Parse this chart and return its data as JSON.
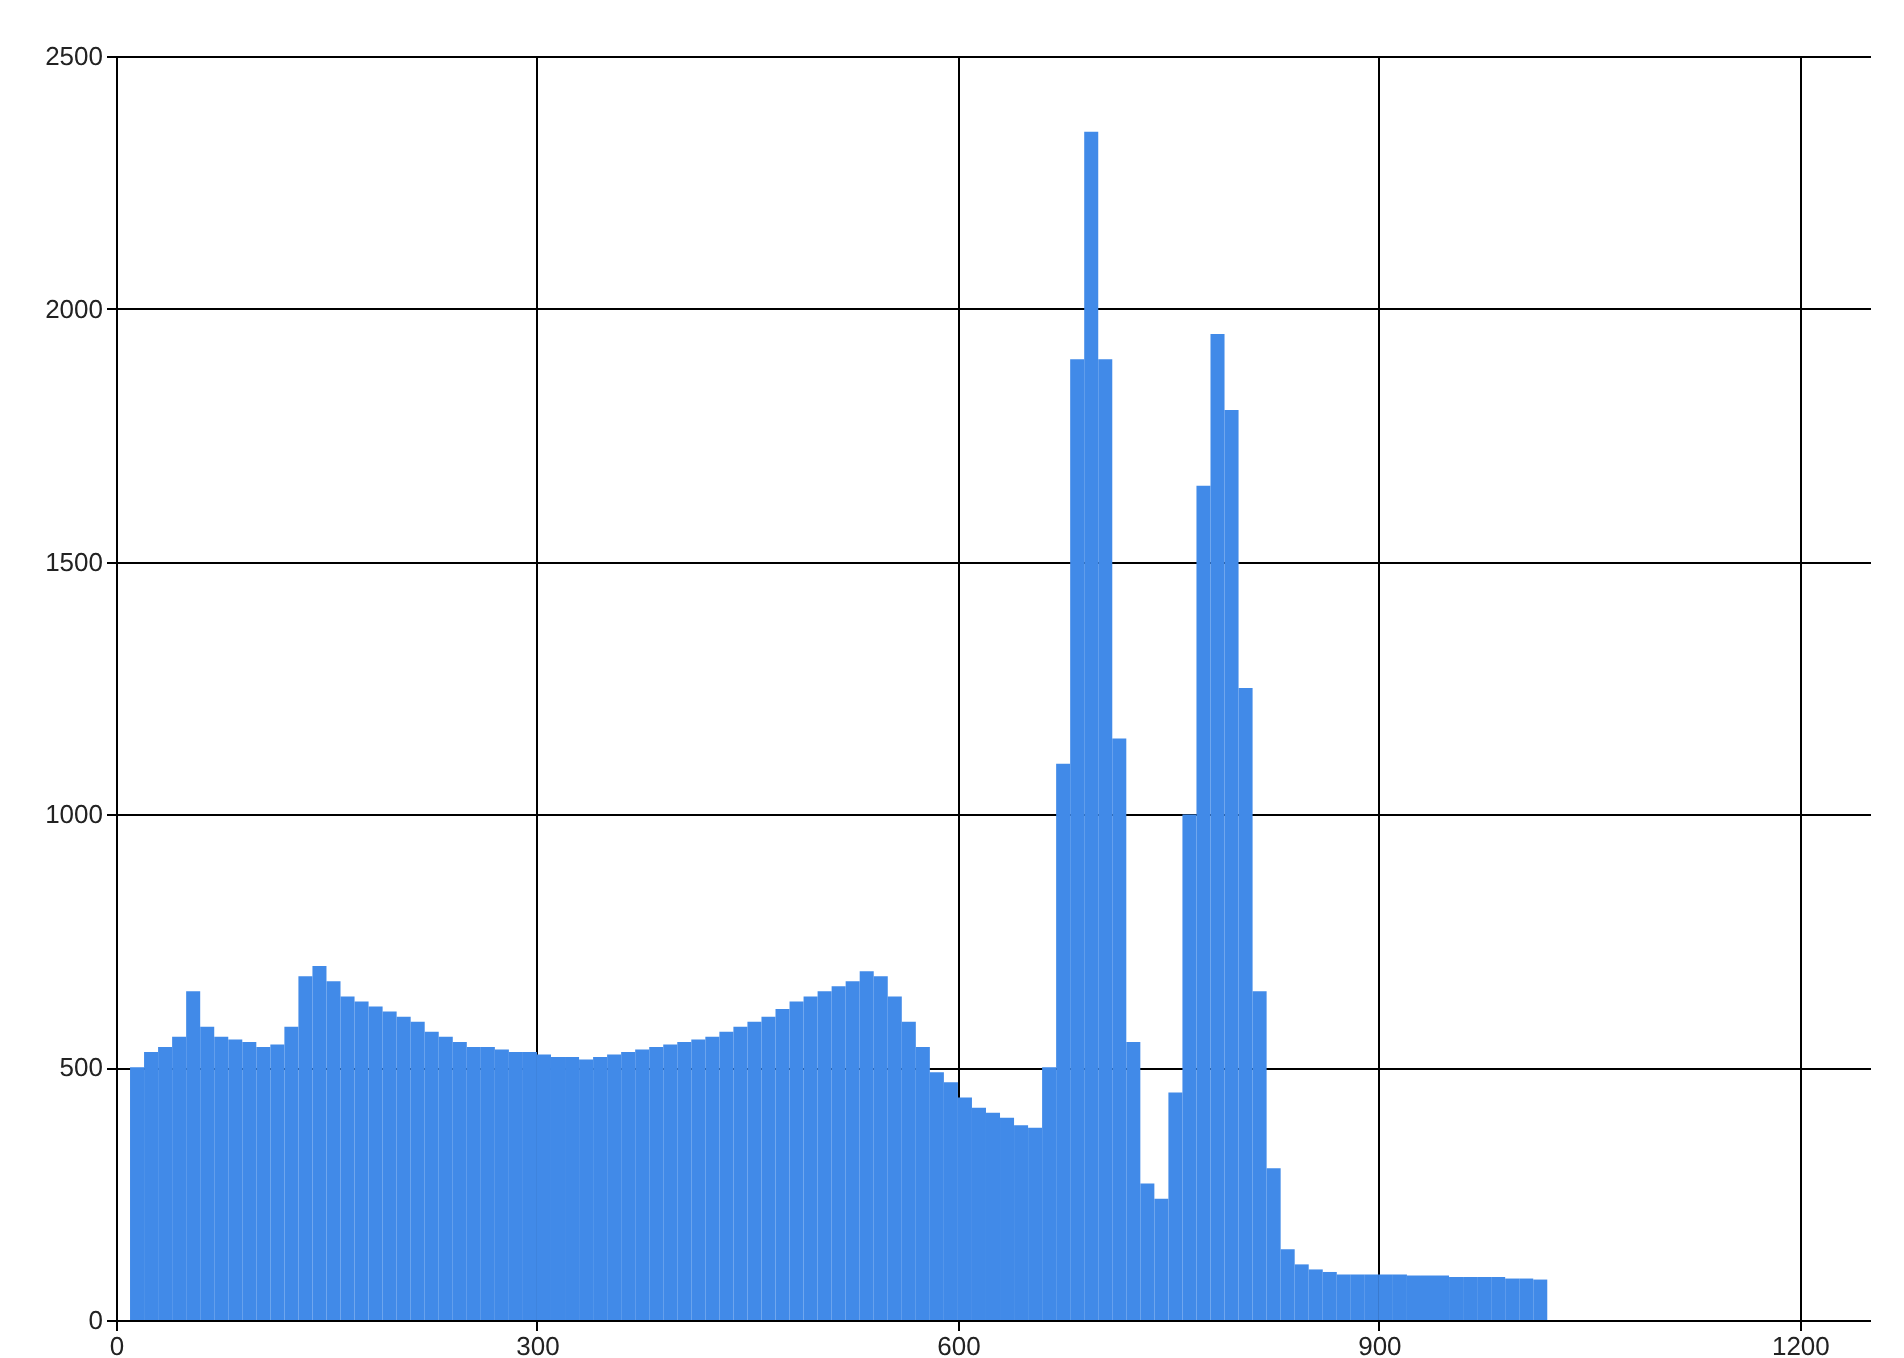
{
  "chart_data": {
    "type": "histogram",
    "bins": [
      10,
      20,
      30,
      40,
      50,
      60,
      70,
      80,
      90,
      100,
      110,
      120,
      130,
      140,
      150,
      160,
      170,
      180,
      190,
      200,
      210,
      220,
      230,
      240,
      250,
      260,
      270,
      280,
      290,
      300,
      310,
      320,
      330,
      340,
      350,
      360,
      370,
      380,
      390,
      400,
      410,
      420,
      430,
      440,
      450,
      460,
      470,
      480,
      490,
      500,
      510,
      520,
      530,
      540,
      550,
      560,
      570,
      580,
      590,
      600,
      610,
      620,
      630,
      640,
      650,
      660,
      670,
      680,
      690,
      700,
      710,
      720,
      730,
      740,
      750,
      760,
      770,
      780,
      790,
      800,
      810,
      820,
      830,
      840,
      850,
      860,
      870,
      880,
      890,
      900,
      910,
      920,
      930,
      940,
      950,
      960,
      970,
      980,
      990,
      1000,
      1010,
      1020
    ],
    "values": [
      500,
      530,
      540,
      560,
      650,
      580,
      560,
      555,
      550,
      540,
      545,
      580,
      680,
      700,
      670,
      640,
      630,
      620,
      610,
      600,
      590,
      570,
      560,
      550,
      540,
      540,
      535,
      530,
      530,
      525,
      520,
      520,
      515,
      520,
      525,
      530,
      535,
      540,
      545,
      550,
      555,
      560,
      570,
      580,
      590,
      600,
      615,
      630,
      640,
      650,
      660,
      670,
      690,
      680,
      640,
      590,
      540,
      490,
      470,
      440,
      420,
      410,
      400,
      385,
      380,
      500,
      1100,
      1900,
      2350,
      1900,
      1150,
      550,
      270,
      240,
      450,
      1000,
      1650,
      1950,
      1800,
      1250,
      650,
      300,
      140,
      110,
      100,
      95,
      90,
      90,
      90,
      90,
      90,
      88,
      88,
      88,
      85,
      85,
      85,
      85,
      82,
      82,
      80
    ],
    "color": "#418ae8",
    "xlim": [
      0,
      1250
    ],
    "xticks": [
      0,
      300,
      600,
      900,
      1200
    ],
    "ylim": [
      0,
      2500
    ],
    "yticks": [
      0,
      500,
      1000,
      1500,
      2000,
      2500
    ],
    "grid": true
  }
}
